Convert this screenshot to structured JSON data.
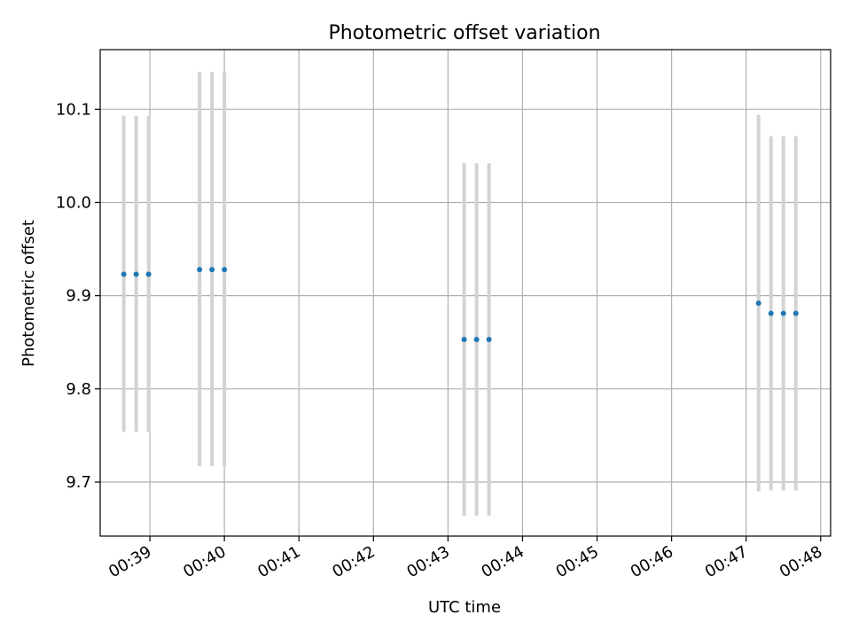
{
  "chart_data": {
    "type": "scatter",
    "title": "Photometric offset variation",
    "xlabel": "UTC time",
    "ylabel": "Photometric offset",
    "x_tick_labels": [
      "00:39",
      "00:40",
      "00:41",
      "00:42",
      "00:43",
      "00:44",
      "00:45",
      "00:46",
      "00:47",
      "00:48"
    ],
    "x_ticks": [
      "00:39:00",
      "00:40:00",
      "00:41:00",
      "00:42:00",
      "00:43:00",
      "00:44:00",
      "00:45:00",
      "00:46:00",
      "00:47:00",
      "00:48:00"
    ],
    "y_tick_labels": [
      "9.7",
      "9.8",
      "9.9",
      "10.0",
      "10.1"
    ],
    "y_ticks": [
      9.7,
      9.8,
      9.9,
      10.0,
      10.1
    ],
    "xlim": [
      "00:38:20",
      "00:48:08"
    ],
    "ylim": [
      9.642,
      10.164
    ],
    "grid": true,
    "colors": {
      "point": "#1f77b4",
      "errorbar": "#d3d3d3",
      "grid": "#b0b0b0",
      "axis": "#000000"
    },
    "series": [
      {
        "points": [
          {
            "time": "00:38:39",
            "y": 9.923,
            "ymin": 9.754,
            "ymax": 10.093
          },
          {
            "time": "00:38:49",
            "y": 9.923,
            "ymin": 9.754,
            "ymax": 10.093
          },
          {
            "time": "00:38:59",
            "y": 9.923,
            "ymin": 9.754,
            "ymax": 10.093
          },
          {
            "time": "00:39:40",
            "y": 9.928,
            "ymin": 9.717,
            "ymax": 10.14
          },
          {
            "time": "00:39:50",
            "y": 9.928,
            "ymin": 9.717,
            "ymax": 10.14
          },
          {
            "time": "00:40:00",
            "y": 9.928,
            "ymin": 9.717,
            "ymax": 10.14
          },
          {
            "time": "00:43:13",
            "y": 9.853,
            "ymin": 9.664,
            "ymax": 10.042
          },
          {
            "time": "00:43:23",
            "y": 9.853,
            "ymin": 9.664,
            "ymax": 10.042
          },
          {
            "time": "00:43:33",
            "y": 9.853,
            "ymin": 9.664,
            "ymax": 10.042
          },
          {
            "time": "00:47:10",
            "y": 9.892,
            "ymin": 9.69,
            "ymax": 10.094
          },
          {
            "time": "00:47:20",
            "y": 9.881,
            "ymin": 9.691,
            "ymax": 10.071
          },
          {
            "time": "00:47:30",
            "y": 9.881,
            "ymin": 9.691,
            "ymax": 10.071
          },
          {
            "time": "00:47:40",
            "y": 9.881,
            "ymin": 9.691,
            "ymax": 10.071
          }
        ]
      }
    ]
  }
}
